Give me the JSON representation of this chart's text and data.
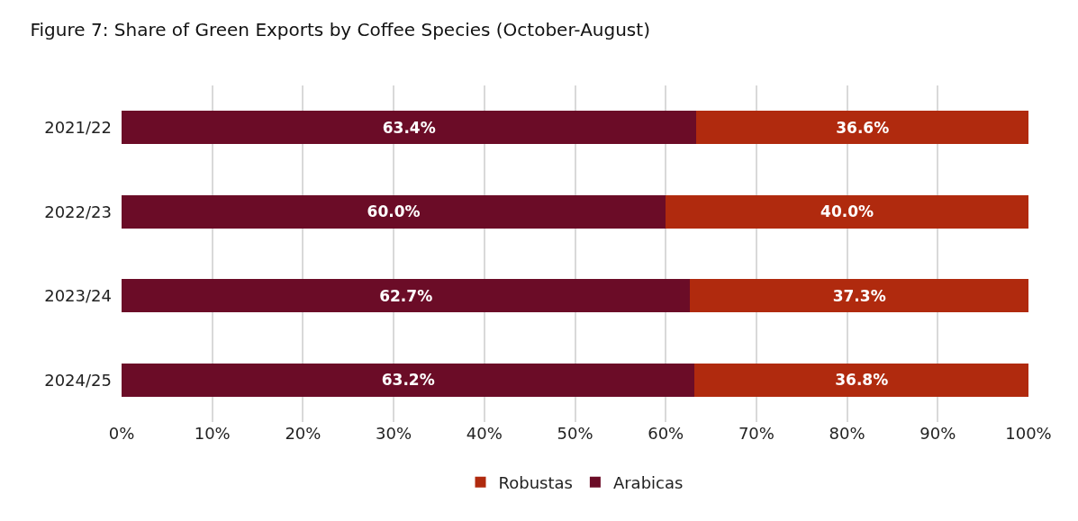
{
  "chart_data": {
    "type": "bar",
    "orientation": "horizontal",
    "stacked": true,
    "title": "Figure 7: Share of Green Exports by Coffee Species (October-August)",
    "categories": [
      "2021/22",
      "2022/23",
      "2023/24",
      "2024/25"
    ],
    "series": [
      {
        "name": "Arabicas",
        "color": "#6b0c27",
        "values": [
          63.4,
          60.0,
          62.7,
          63.2
        ],
        "value_labels": [
          "63.4%",
          "60.0%",
          "62.7%",
          "63.2%"
        ]
      },
      {
        "name": "Robustas",
        "color": "#b02a0e",
        "values": [
          36.6,
          40.0,
          37.3,
          36.8
        ],
        "value_labels": [
          "36.6%",
          "40.0%",
          "37.3%",
          "36.8%"
        ]
      }
    ],
    "xlim": [
      0,
      100
    ],
    "xticks": [
      {
        "value": 0,
        "label": "0%"
      },
      {
        "value": 10,
        "label": "10%"
      },
      {
        "value": 20,
        "label": "20%"
      },
      {
        "value": 30,
        "label": "30%"
      },
      {
        "value": 40,
        "label": "40%"
      },
      {
        "value": 50,
        "label": "50%"
      },
      {
        "value": 60,
        "label": "60%"
      },
      {
        "value": 70,
        "label": "70%"
      },
      {
        "value": 80,
        "label": "80%"
      },
      {
        "value": 90,
        "label": "90%"
      },
      {
        "value": 100,
        "label": "100%"
      }
    ],
    "grid": "x",
    "legend": "bottom"
  }
}
